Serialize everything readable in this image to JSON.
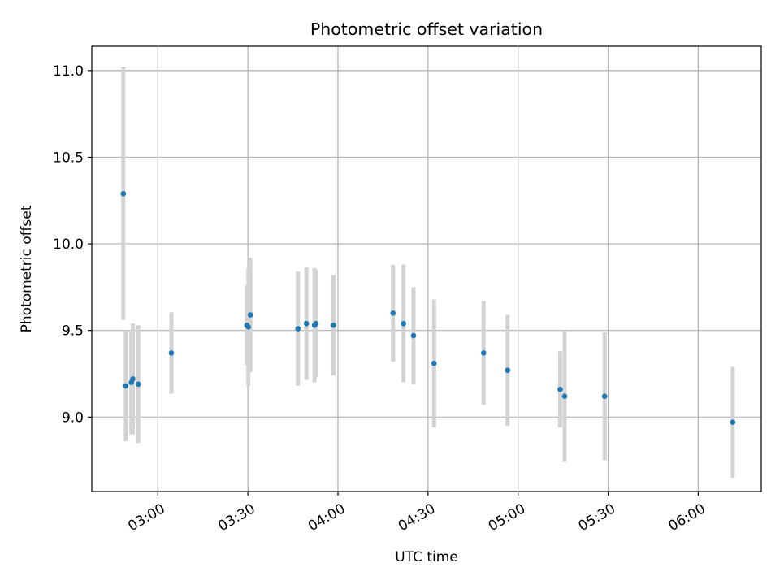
{
  "chart_data": {
    "type": "scatter",
    "title": "Photometric offset variation",
    "xlabel": "UTC time",
    "ylabel": "Photometric offset",
    "x_axis_type": "time",
    "xlim": [
      "02:38",
      "06:21"
    ],
    "ylim": [
      8.57,
      11.14
    ],
    "x_ticks": [
      "03:00",
      "03:30",
      "04:00",
      "04:30",
      "05:00",
      "05:30",
      "06:00"
    ],
    "y_ticks": [
      9.0,
      9.5,
      10.0,
      10.5,
      11.0
    ],
    "grid": true,
    "legend": "none",
    "colors": {
      "points": "#1f77b4",
      "errorbars": "#d3d3d3",
      "grid": "#b0b0b0"
    },
    "points": [
      {
        "t": "02:48:30",
        "y": 10.29,
        "err": 0.73
      },
      {
        "t": "02:49:20",
        "y": 9.18,
        "err": 0.32
      },
      {
        "t": "02:51:10",
        "y": 9.2,
        "err": 0.3
      },
      {
        "t": "02:51:40",
        "y": 9.22,
        "err": 0.32
      },
      {
        "t": "02:53:30",
        "y": 9.19,
        "err": 0.34
      },
      {
        "t": "03:04:30",
        "y": 9.37,
        "err": 0.235
      },
      {
        "t": "03:29:40",
        "y": 9.53,
        "err": 0.23
      },
      {
        "t": "03:30:10",
        "y": 9.52,
        "err": 0.34
      },
      {
        "t": "03:30:50",
        "y": 9.59,
        "err": 0.33
      },
      {
        "t": "03:46:40",
        "y": 9.51,
        "err": 0.33
      },
      {
        "t": "03:49:30",
        "y": 9.54,
        "err": 0.325
      },
      {
        "t": "03:52:10",
        "y": 9.53,
        "err": 0.33
      },
      {
        "t": "03:52:40",
        "y": 9.54,
        "err": 0.31
      },
      {
        "t": "03:58:30",
        "y": 9.53,
        "err": 0.29
      },
      {
        "t": "04:18:20",
        "y": 9.6,
        "err": 0.28
      },
      {
        "t": "04:21:50",
        "y": 9.54,
        "err": 0.34
      },
      {
        "t": "04:25:10",
        "y": 9.47,
        "err": 0.28
      },
      {
        "t": "04:32:00",
        "y": 9.31,
        "err": 0.37
      },
      {
        "t": "04:48:30",
        "y": 9.37,
        "err": 0.3
      },
      {
        "t": "04:56:30",
        "y": 9.27,
        "err": 0.32
      },
      {
        "t": "05:14:00",
        "y": 9.16,
        "err": 0.22
      },
      {
        "t": "05:15:30",
        "y": 9.12,
        "err": 0.38
      },
      {
        "t": "05:28:50",
        "y": 9.12,
        "err": 0.37
      },
      {
        "t": "06:11:30",
        "y": 8.97,
        "err": 0.32
      }
    ]
  }
}
